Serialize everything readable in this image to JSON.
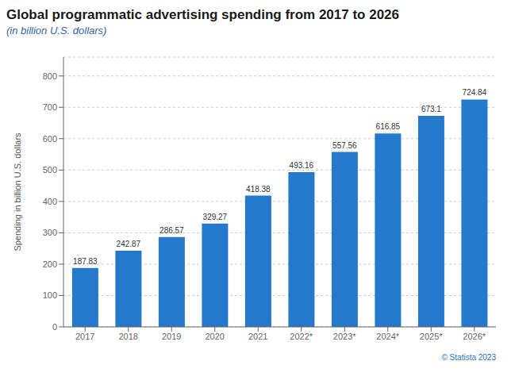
{
  "chart_data": {
    "type": "bar",
    "title": "Global programmatic advertising spending from 2017 to 2026",
    "subtitle": "(in billion U.S. dollars)",
    "ylabel": "Spending in billion U.S. dollars",
    "annotation": "© Statista 2023",
    "categories": [
      "2017",
      "2018",
      "2019",
      "2020",
      "2021",
      "2022*",
      "2023*",
      "2024*",
      "2025*",
      "2026*"
    ],
    "values": [
      187.83,
      242.87,
      286.57,
      329.27,
      418.38,
      493.16,
      557.56,
      616.85,
      673.1,
      724.84
    ],
    "color": "#2479CC",
    "ylim": [
      0,
      860
    ],
    "yticks": [
      0,
      100,
      200,
      300,
      400,
      500,
      600,
      700,
      800
    ],
    "grid": true,
    "data_labels": true
  }
}
